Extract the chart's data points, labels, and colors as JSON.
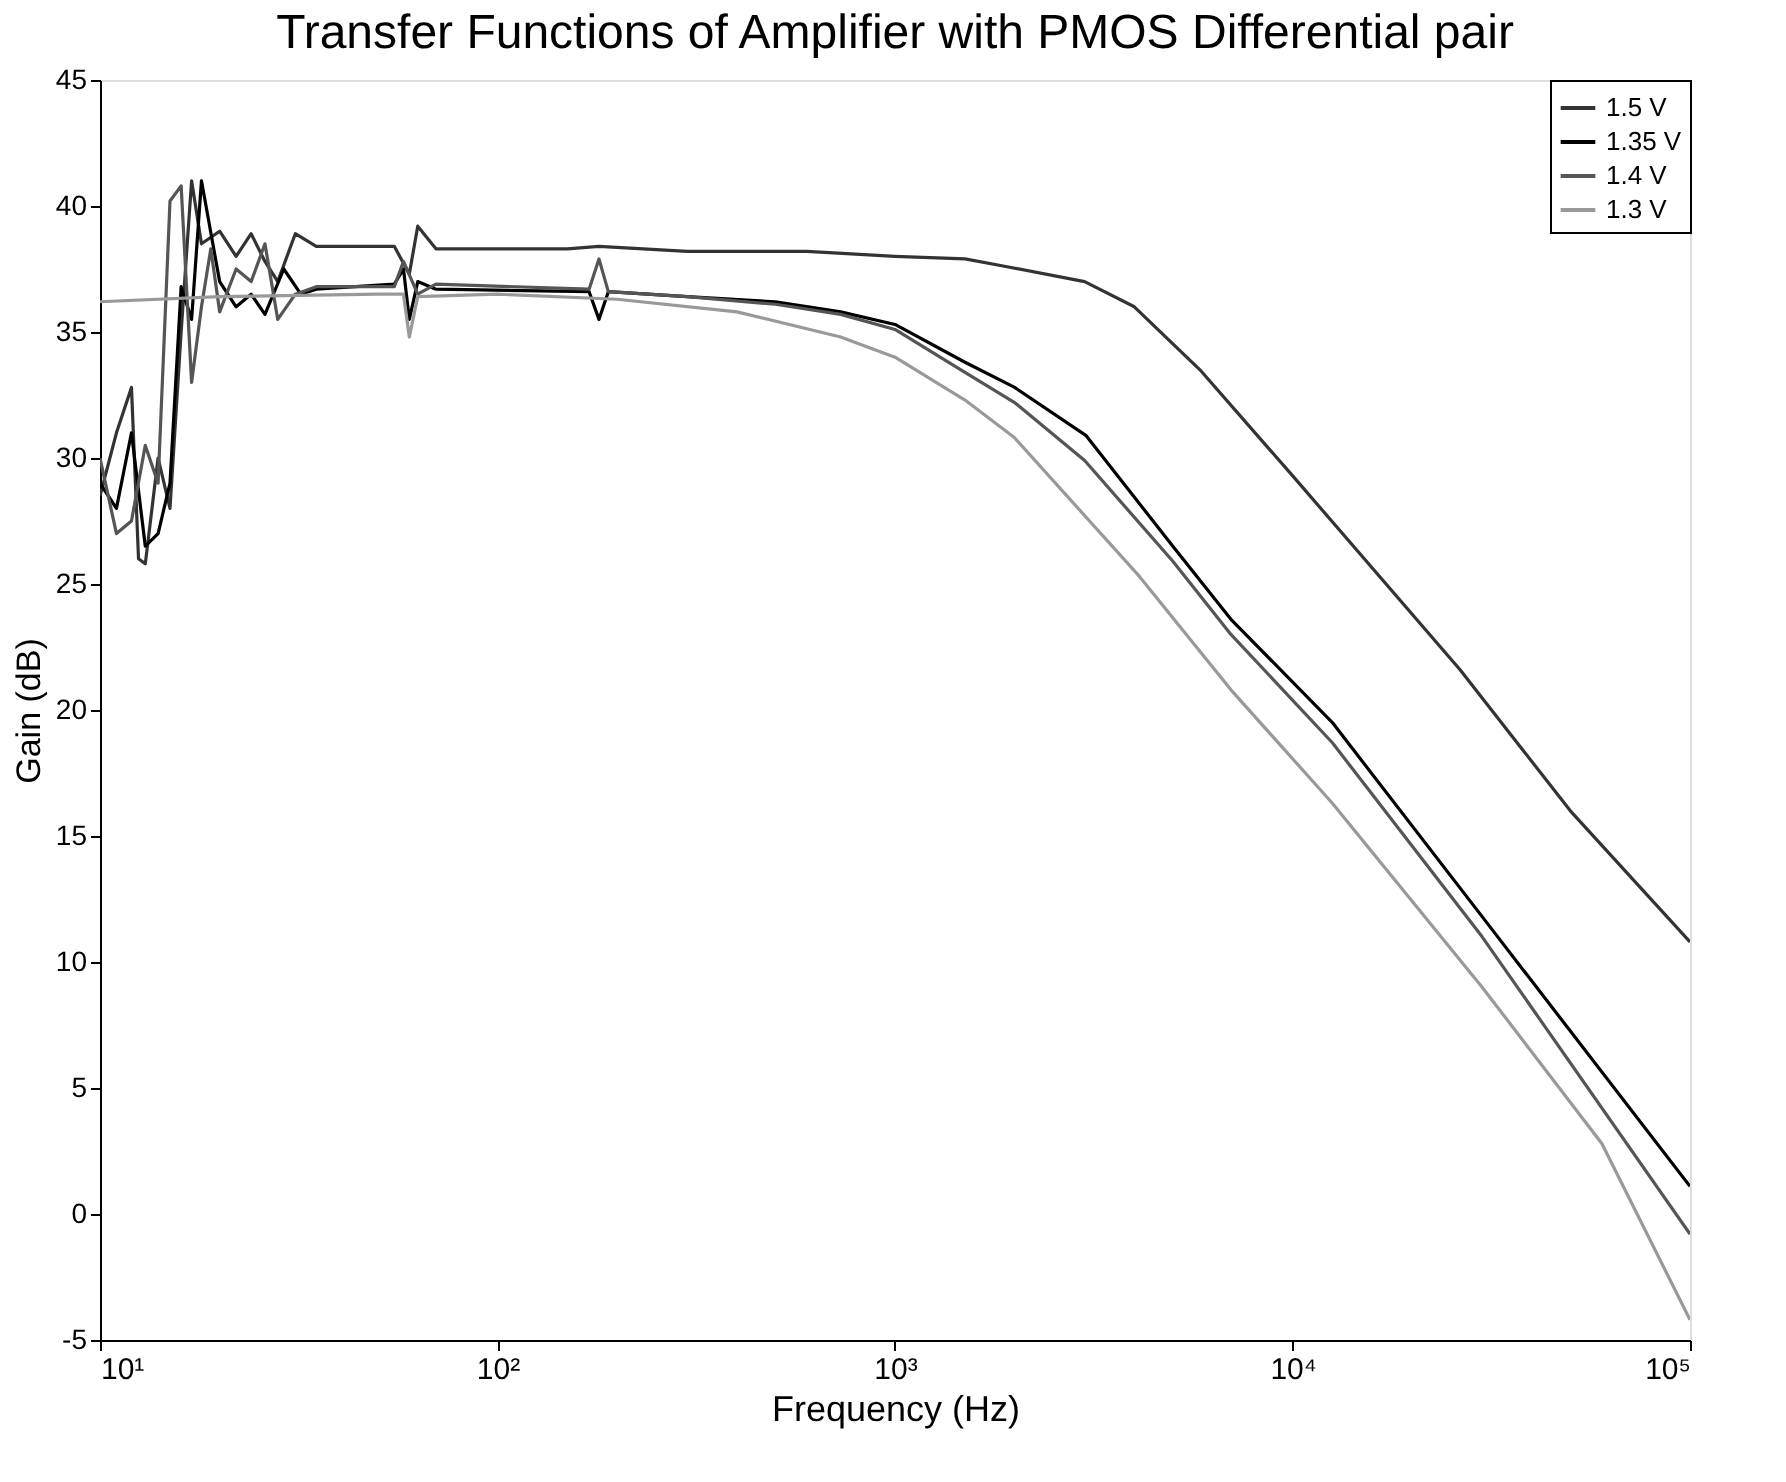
{
  "chart_data": {
    "type": "line",
    "title": "Transfer Functions of Amplifier with PMOS Differential pair",
    "xlabel": "Frequency (Hz)",
    "ylabel": "Gain (dB)",
    "log": "x",
    "xlim": [
      10,
      100000
    ],
    "ylim": [
      -5,
      45
    ],
    "xticks": [
      {
        "value": 10,
        "label": "10¹"
      },
      {
        "value": 100,
        "label": "10²"
      },
      {
        "value": 1000,
        "label": "10³"
      },
      {
        "value": 10000,
        "label": "10⁴"
      },
      {
        "value": 100000,
        "label": "10⁵"
      }
    ],
    "yticks": [
      -5,
      0,
      5,
      10,
      15,
      20,
      25,
      30,
      35,
      40,
      45
    ],
    "grid": false,
    "legend": "top right",
    "line_style": "solid",
    "marker": "none",
    "series": [
      {
        "name": "1.5 V",
        "color": "#333333",
        "x": [
          10,
          11,
          12,
          12.5,
          13,
          14,
          15,
          16,
          17,
          18,
          20,
          22,
          24,
          26,
          28,
          31,
          35,
          55,
          60,
          63,
          70,
          150,
          180,
          300,
          600,
          1000,
          1500,
          1900,
          3000,
          4000,
          5850,
          10000,
          26400,
          50000,
          100000
        ],
        "values": [
          28.5,
          31,
          32.8,
          26,
          25.8,
          30,
          28,
          35,
          41,
          38.5,
          39,
          38,
          38.9,
          37.8,
          37,
          38.9,
          38.4,
          38.4,
          37.3,
          39.2,
          38.3,
          38.3,
          38.4,
          38.2,
          38.2,
          38,
          37.9,
          37.6,
          37,
          36,
          33.5,
          29.3,
          21.6,
          16,
          10.8
        ]
      },
      {
        "name": "1.35 V",
        "color": "#000000",
        "x": [
          10,
          11,
          12,
          13,
          14,
          15,
          16,
          17,
          18,
          20,
          22,
          24,
          26,
          29,
          32,
          35,
          55,
          58,
          60,
          63,
          70,
          170,
          180,
          190,
          300,
          500,
          730,
          1000,
          1500,
          2000,
          3020,
          5000,
          7000,
          12600,
          30000,
          100000
        ],
        "values": [
          29,
          28,
          31,
          26.5,
          27,
          29,
          36.8,
          35.5,
          41,
          37,
          36,
          36.5,
          35.7,
          37.5,
          36.5,
          36.7,
          36.9,
          37.5,
          35.5,
          37,
          36.7,
          36.6,
          35.5,
          36.6,
          36.4,
          36.2,
          35.8,
          35.3,
          33.8,
          32.8,
          30.9,
          26.5,
          23.6,
          19.5,
          11.8,
          1.1
        ]
      },
      {
        "name": "1.4 V",
        "color": "#555555",
        "x": [
          10,
          11,
          12,
          13,
          14,
          15,
          16,
          17,
          18,
          19,
          20,
          22,
          24,
          26,
          28,
          31,
          35,
          55,
          58,
          63,
          70,
          170,
          180,
          190,
          300,
          500,
          730,
          1000,
          1500,
          2000,
          3000,
          5000,
          7000,
          12600,
          30000,
          100000
        ],
        "values": [
          30,
          27,
          27.5,
          30.5,
          29,
          40.2,
          40.8,
          33,
          36,
          38.3,
          35.8,
          37.5,
          37,
          38.5,
          35.5,
          36.5,
          36.8,
          36.8,
          37.8,
          36.5,
          36.9,
          36.7,
          37.9,
          36.6,
          36.4,
          36.1,
          35.7,
          35.1,
          33.4,
          32.2,
          29.9,
          25.9,
          23,
          18.7,
          11,
          -0.8
        ]
      },
      {
        "name": "1.3 V",
        "color": "#999999",
        "x": [
          10,
          20,
          50,
          58,
          60,
          63,
          100,
          200,
          400,
          730,
          1000,
          1500,
          2000,
          4120,
          7000,
          12600,
          30000,
          60000,
          100000
        ],
        "values": [
          36.2,
          36.4,
          36.5,
          36.5,
          34.8,
          36.4,
          36.5,
          36.3,
          35.8,
          34.8,
          34,
          32.3,
          30.8,
          25.3,
          20.8,
          16.3,
          9,
          2.8,
          -4.2
        ]
      }
    ]
  }
}
